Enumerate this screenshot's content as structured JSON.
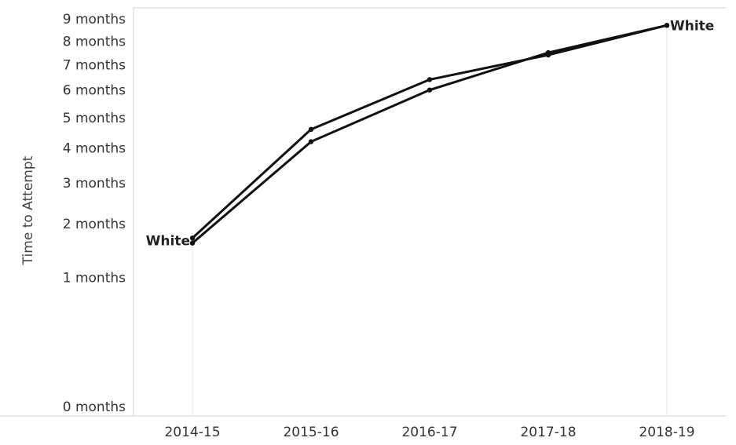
{
  "chart_data": {
    "type": "line",
    "title": "",
    "xlabel": "",
    "ylabel": "Time to Attempt",
    "categories": [
      "2014-15",
      "2015-16",
      "2016-17",
      "2017-18",
      "2018-19"
    ],
    "y_tick_labels": [
      "0 months",
      "1 months",
      "2 months",
      "3 months",
      "4 months",
      "5 months",
      "6 months",
      "7 months",
      "8 months",
      "9 months"
    ],
    "ylim": [
      0,
      9
    ],
    "y_scale": "sqrt",
    "grid": false,
    "legend": "none",
    "series": [
      {
        "values": [
          1.6,
          4.2,
          6.0,
          7.5,
          8.7
        ]
      },
      {
        "values": [
          1.7,
          4.6,
          6.4,
          7.4,
          8.7
        ]
      }
    ],
    "end_labels": {
      "start": "White",
      "end": "White"
    },
    "colors": {
      "line": "#111111",
      "frame": "#d0d0d0",
      "reference": "#f1e6d4"
    }
  }
}
